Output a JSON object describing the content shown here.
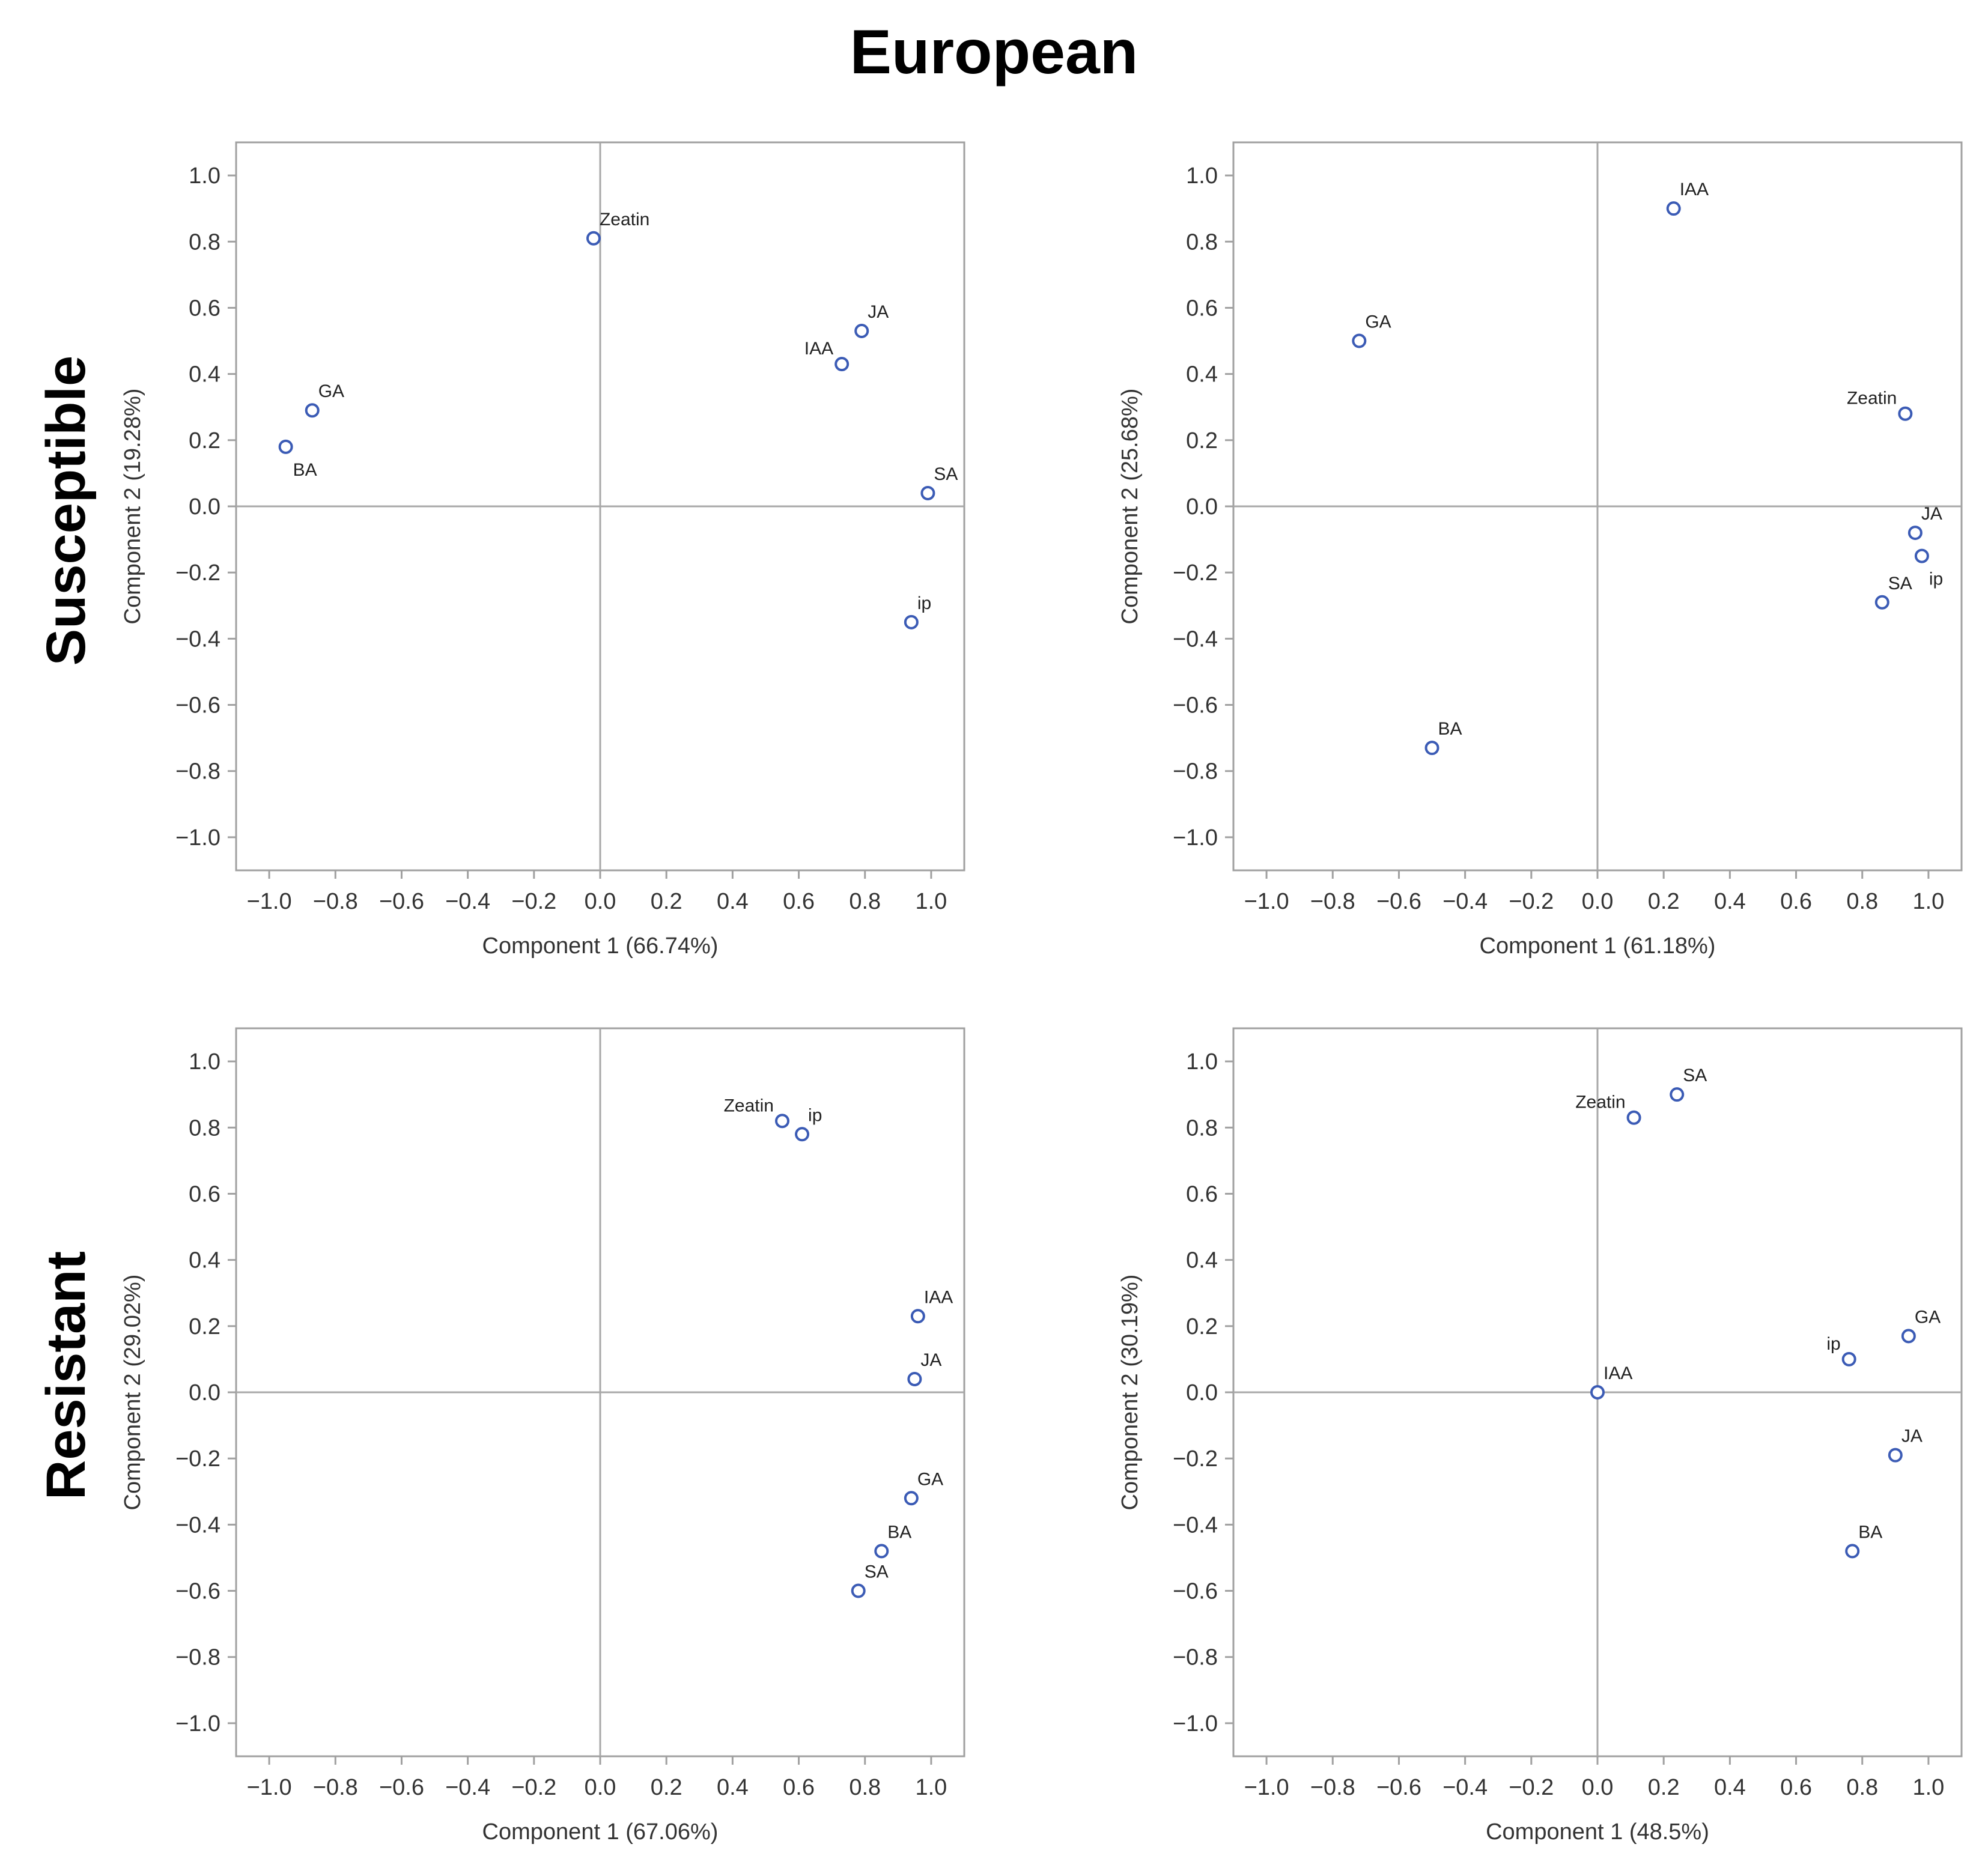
{
  "title": "European",
  "row_labels": [
    "Susceptible",
    "Resistant"
  ],
  "chart_data": [
    {
      "type": "scatter",
      "row": "Susceptible",
      "xlabel": "Component 1 (66.74%)",
      "ylabel": "Component 2 (19.28%)",
      "xlim": [
        -1.1,
        1.1
      ],
      "ylim": [
        -1.1,
        1.1
      ],
      "xticks": [
        "−1.0",
        "−0.8",
        "−0.6",
        "−0.4",
        "−0.2",
        "0.0",
        "0.2",
        "0.4",
        "0.6",
        "0.8",
        "1.0"
      ],
      "yticks": [
        "−1.0",
        "−0.8",
        "−0.6",
        "−0.4",
        "−0.2",
        "0.0",
        "0.2",
        "0.4",
        "0.6",
        "0.8",
        "1.0"
      ],
      "points": [
        {
          "label": "Zeatin",
          "x": -0.02,
          "y": 0.81,
          "pos": "upper-right"
        },
        {
          "label": "JA",
          "x": 0.79,
          "y": 0.53,
          "pos": "upper-right"
        },
        {
          "label": "IAA",
          "x": 0.73,
          "y": 0.43,
          "pos": "upper-left"
        },
        {
          "label": "GA",
          "x": -0.87,
          "y": 0.29,
          "pos": "upper-right"
        },
        {
          "label": "BA",
          "x": -0.95,
          "y": 0.18,
          "pos": "lower-right"
        },
        {
          "label": "SA",
          "x": 0.99,
          "y": 0.04,
          "pos": "upper-right"
        },
        {
          "label": "ip",
          "x": 0.94,
          "y": -0.35,
          "pos": "upper-right"
        }
      ]
    },
    {
      "type": "scatter",
      "row": "Susceptible",
      "xlabel": "Component 1 (61.18%)",
      "ylabel": "Component 2 (25.68%)",
      "xlim": [
        -1.1,
        1.1
      ],
      "ylim": [
        -1.1,
        1.1
      ],
      "xticks": [
        "−1.0",
        "−0.8",
        "−0.6",
        "−0.4",
        "−0.2",
        "0.0",
        "0.2",
        "0.4",
        "0.6",
        "0.8",
        "1.0"
      ],
      "yticks": [
        "−1.0",
        "−0.8",
        "−0.6",
        "−0.4",
        "−0.2",
        "0.0",
        "0.2",
        "0.4",
        "0.6",
        "0.8",
        "1.0"
      ],
      "points": [
        {
          "label": "IAA",
          "x": 0.23,
          "y": 0.9,
          "pos": "upper-right"
        },
        {
          "label": "GA",
          "x": -0.72,
          "y": 0.5,
          "pos": "upper-right"
        },
        {
          "label": "Zeatin",
          "x": 0.93,
          "y": 0.28,
          "pos": "upper-left"
        },
        {
          "label": "JA",
          "x": 0.96,
          "y": -0.08,
          "pos": "upper-right"
        },
        {
          "label": "ip",
          "x": 0.98,
          "y": -0.15,
          "pos": "lower-right"
        },
        {
          "label": "SA",
          "x": 0.86,
          "y": -0.29,
          "pos": "upper-right"
        },
        {
          "label": "BA",
          "x": -0.5,
          "y": -0.73,
          "pos": "upper-right"
        }
      ]
    },
    {
      "type": "scatter",
      "row": "Resistant",
      "xlabel": "Component 1 (67.06%)",
      "ylabel": "Component 2 (29.02%)",
      "xlim": [
        -1.1,
        1.1
      ],
      "ylim": [
        -1.1,
        1.1
      ],
      "xticks": [
        "−1.0",
        "−0.8",
        "−0.6",
        "−0.4",
        "−0.2",
        "0.0",
        "0.2",
        "0.4",
        "0.6",
        "0.8",
        "1.0"
      ],
      "yticks": [
        "−1.0",
        "−0.8",
        "−0.6",
        "−0.4",
        "−0.2",
        "0.0",
        "0.2",
        "0.4",
        "0.6",
        "0.8",
        "1.0"
      ],
      "points": [
        {
          "label": "Zeatin",
          "x": 0.55,
          "y": 0.82,
          "pos": "upper-left"
        },
        {
          "label": "ip",
          "x": 0.61,
          "y": 0.78,
          "pos": "upper-right"
        },
        {
          "label": "IAA",
          "x": 0.96,
          "y": 0.23,
          "pos": "upper-right"
        },
        {
          "label": "JA",
          "x": 0.95,
          "y": 0.04,
          "pos": "upper-right"
        },
        {
          "label": "GA",
          "x": 0.94,
          "y": -0.32,
          "pos": "upper-right"
        },
        {
          "label": "BA",
          "x": 0.85,
          "y": -0.48,
          "pos": "upper-right"
        },
        {
          "label": "SA",
          "x": 0.78,
          "y": -0.6,
          "pos": "upper-right"
        }
      ]
    },
    {
      "type": "scatter",
      "row": "Resistant",
      "xlabel": "Component 1 (48.5%)",
      "ylabel": "Component 2 (30.19%)",
      "xlim": [
        -1.1,
        1.1
      ],
      "ylim": [
        -1.1,
        1.1
      ],
      "xticks": [
        "−1.0",
        "−0.8",
        "−0.6",
        "−0.4",
        "−0.2",
        "0.0",
        "0.2",
        "0.4",
        "0.6",
        "0.8",
        "1.0"
      ],
      "yticks": [
        "−1.0",
        "−0.8",
        "−0.6",
        "−0.4",
        "−0.2",
        "0.0",
        "0.2",
        "0.4",
        "0.6",
        "0.8",
        "1.0"
      ],
      "points": [
        {
          "label": "SA",
          "x": 0.24,
          "y": 0.9,
          "pos": "upper-right"
        },
        {
          "label": "Zeatin",
          "x": 0.11,
          "y": 0.83,
          "pos": "upper-left"
        },
        {
          "label": "GA",
          "x": 0.94,
          "y": 0.17,
          "pos": "upper-right"
        },
        {
          "label": "ip",
          "x": 0.76,
          "y": 0.1,
          "pos": "upper-left"
        },
        {
          "label": "IAA",
          "x": 0.0,
          "y": 0.0,
          "pos": "upper-right"
        },
        {
          "label": "JA",
          "x": 0.9,
          "y": -0.19,
          "pos": "upper-right"
        },
        {
          "label": "BA",
          "x": 0.77,
          "y": -0.48,
          "pos": "upper-right"
        }
      ]
    }
  ],
  "colors": {
    "marker": "#3b5bb5",
    "frame": "#a0a0a0",
    "axis_line": "#a8a8a8",
    "text": "#333333"
  }
}
